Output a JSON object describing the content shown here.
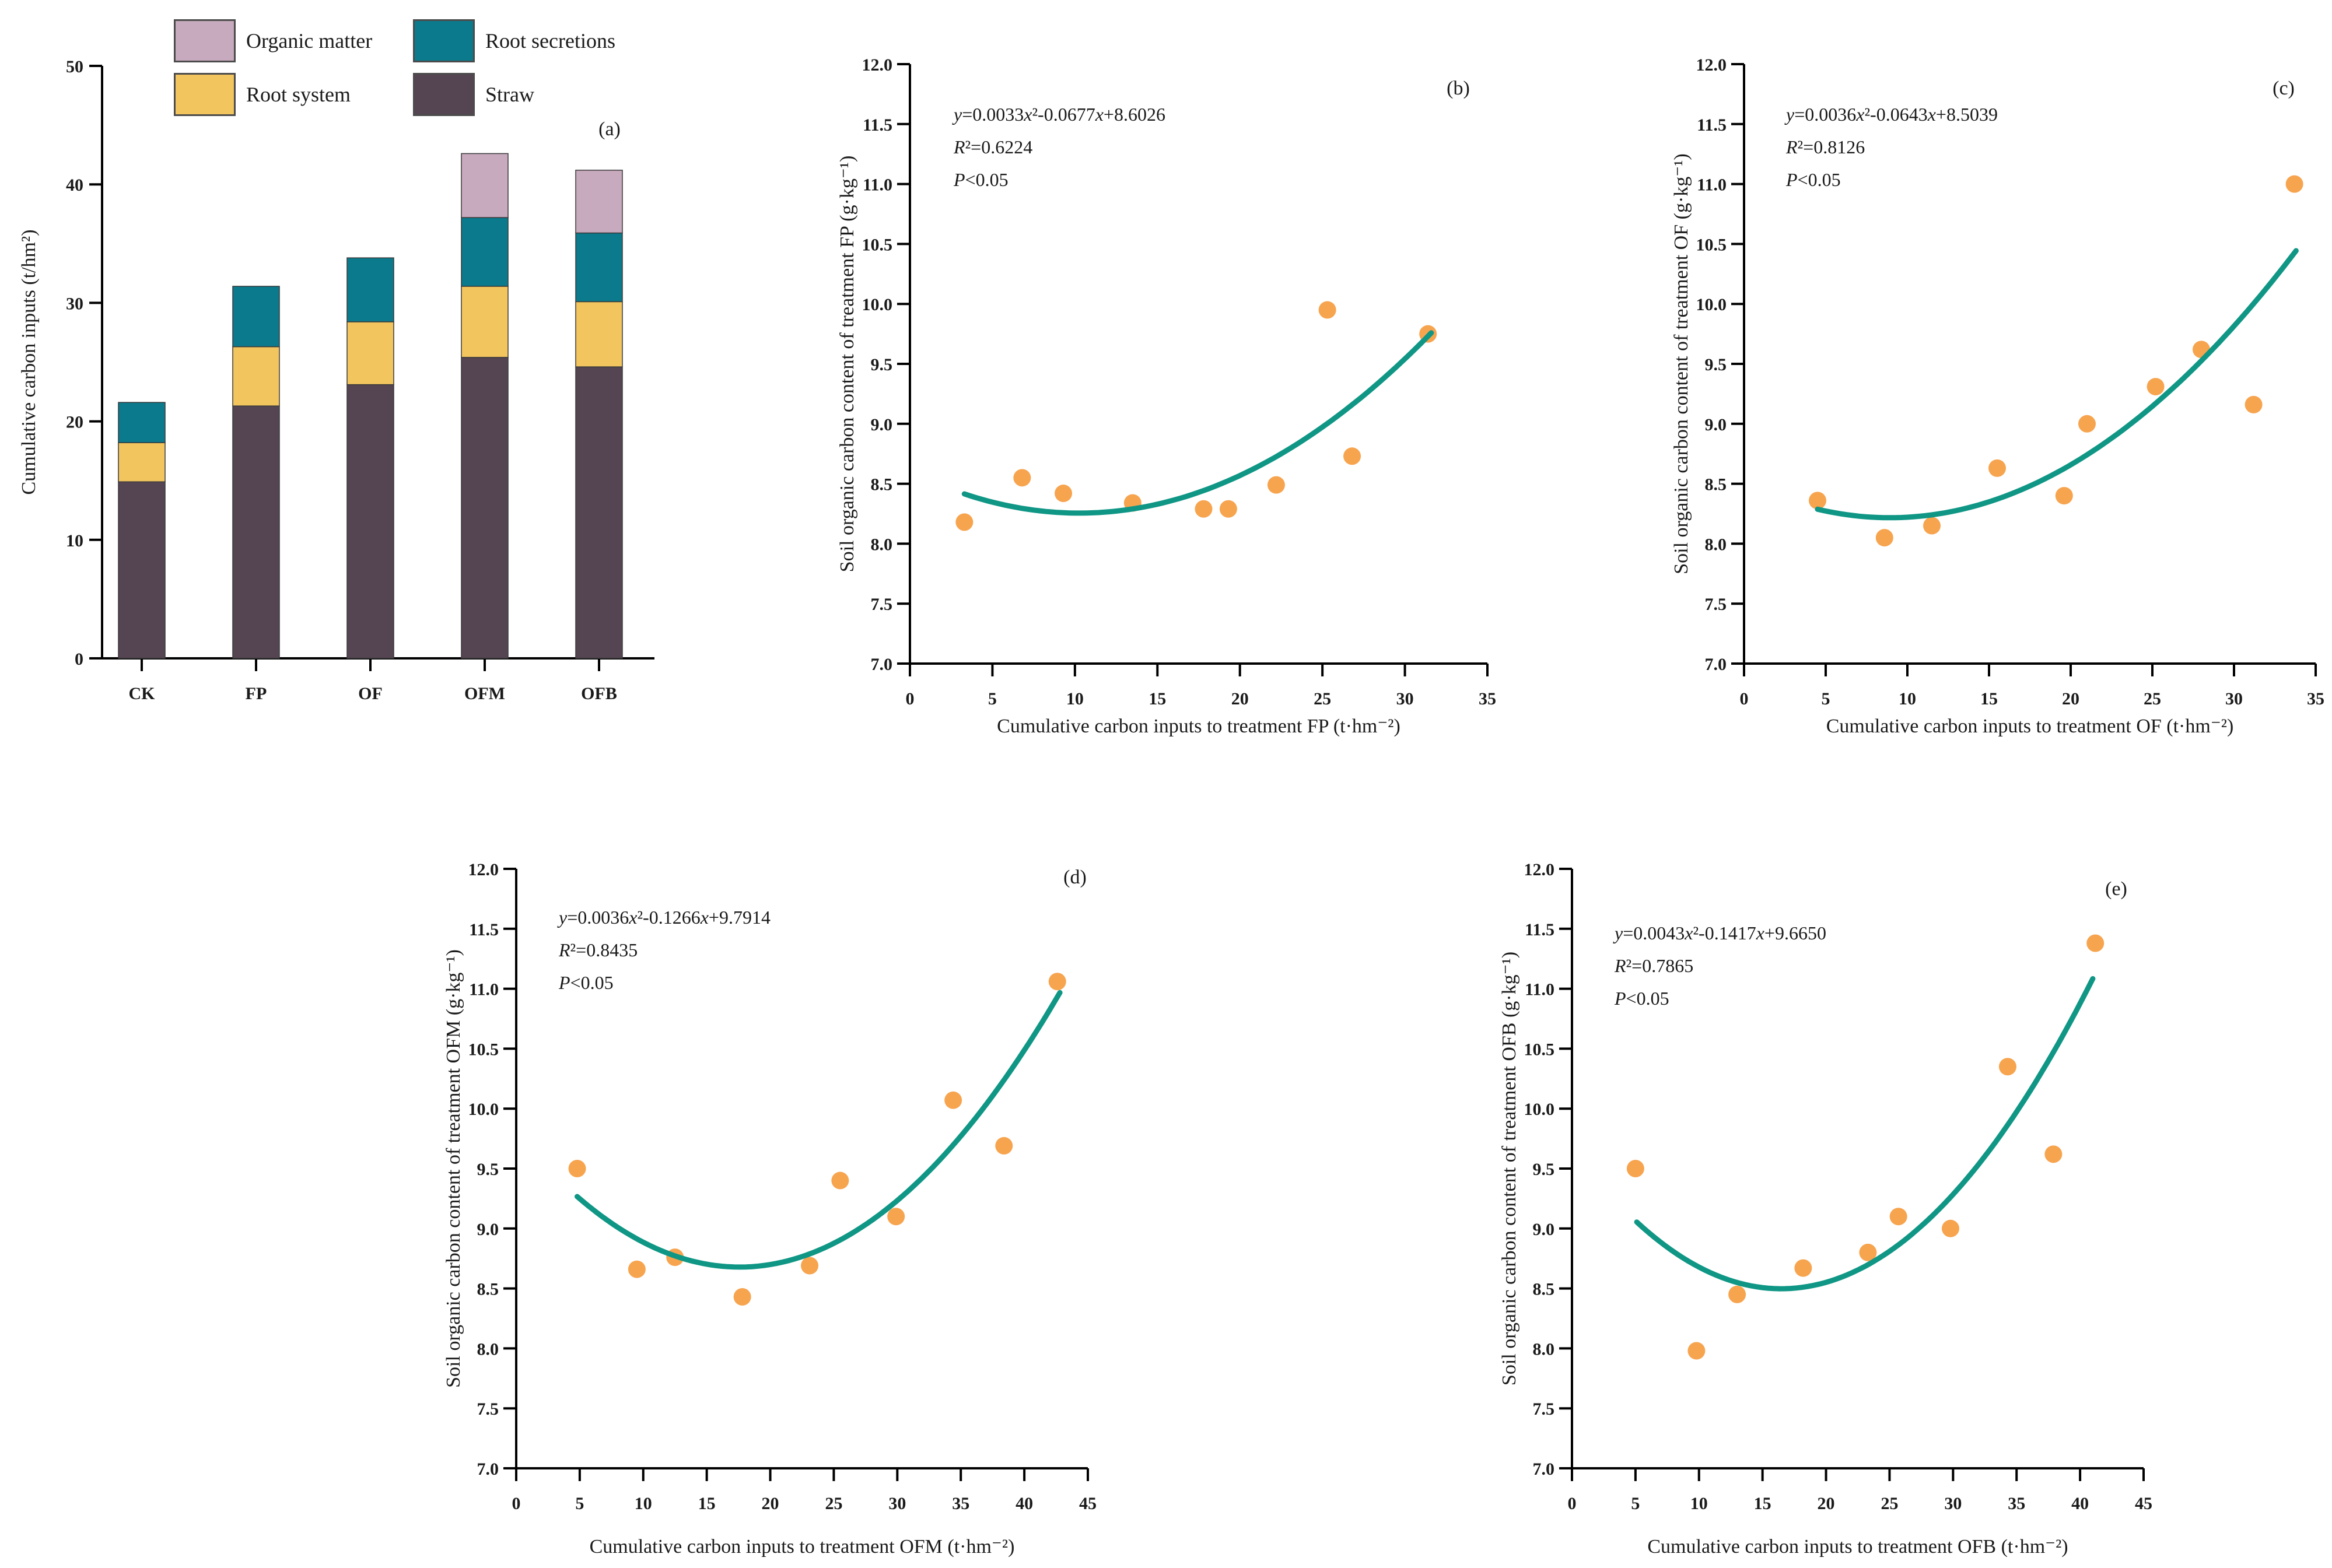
{
  "page": {
    "background": "#ffffff",
    "axis_color": "#000000",
    "text_color": "#1a1a1a"
  },
  "chart_data": [
    {
      "id": "a",
      "type": "bar",
      "panel_label": "(a)",
      "ylabel": "Cumulative carbon inputs (t/hm²)",
      "ylim": [
        0,
        50
      ],
      "yticks": [
        0,
        10,
        20,
        30,
        40,
        50
      ],
      "categories": [
        "CK",
        "FP",
        "OF",
        "OFM",
        "OFB"
      ],
      "series": [
        {
          "name": "Straw",
          "color": "#554452",
          "values": [
            14.9,
            21.3,
            23.1,
            25.4,
            24.6
          ]
        },
        {
          "name": "Root system",
          "color": "#F3C55F",
          "values": [
            3.3,
            5.0,
            5.3,
            6.0,
            5.5
          ]
        },
        {
          "name": "Root secretions",
          "color": "#0A7A8C",
          "values": [
            3.4,
            5.1,
            5.4,
            5.8,
            5.8
          ]
        },
        {
          "name": "Organic matter",
          "color": "#C7AABD",
          "values": [
            0,
            0,
            0,
            5.4,
            5.3
          ]
        }
      ],
      "totals": [
        21.6,
        31.4,
        33.8,
        42.6,
        41.2
      ],
      "legend": [
        {
          "label": "Organic matter",
          "color": "#C7AABD"
        },
        {
          "label": "Root secretions",
          "color": "#0A7A8C"
        },
        {
          "label": "Root system",
          "color": "#F3C55F"
        },
        {
          "label": "Straw",
          "color": "#554452"
        }
      ]
    },
    {
      "id": "b",
      "type": "scatter",
      "panel_label": "(b)",
      "xlabel": "Cumulative carbon inputs to treatment FP (t·hm⁻²)",
      "ylabel": "Soil organic carbon content of treatment FP (g·kg⁻¹)",
      "xlim": [
        0,
        35
      ],
      "xtick_step": 5,
      "ylim": [
        7,
        12
      ],
      "ytick_step": 0.5,
      "equation": [
        "y=0.0033x²-0.0677x+8.6026",
        "R²=0.6224",
        "P<0.05"
      ],
      "fit": {
        "a": 0.0033,
        "b": -0.0677,
        "c": 8.6026,
        "x_range": [
          3.3,
          31.6
        ]
      },
      "points": [
        [
          3.3,
          8.18
        ],
        [
          6.8,
          8.55
        ],
        [
          9.3,
          8.42
        ],
        [
          13.5,
          8.34
        ],
        [
          17.8,
          8.29
        ],
        [
          19.3,
          8.29
        ],
        [
          22.2,
          8.49
        ],
        [
          25.3,
          9.95
        ],
        [
          26.8,
          8.73
        ],
        [
          31.4,
          9.75
        ]
      ],
      "point_color": "#F7A44F",
      "curve_color": "#0F9685"
    },
    {
      "id": "c",
      "type": "scatter",
      "panel_label": "(c)",
      "xlabel": "Cumulative carbon inputs to treatment OF (t·hm⁻²)",
      "ylabel": "Soil organic carbon content of treatment OF (g·kg⁻¹)",
      "xlim": [
        0,
        35
      ],
      "xtick_step": 5,
      "ylim": [
        7,
        12
      ],
      "ytick_step": 0.5,
      "equation": [
        "y=0.0036x²-0.0643x+8.5039",
        "R²=0.8126",
        "P<0.05"
      ],
      "fit": {
        "a": 0.0036,
        "b": -0.0643,
        "c": 8.5039,
        "x_range": [
          4.5,
          33.8
        ]
      },
      "points": [
        [
          4.5,
          8.36
        ],
        [
          8.6,
          8.05
        ],
        [
          11.5,
          8.15
        ],
        [
          15.5,
          8.63
        ],
        [
          19.6,
          8.4
        ],
        [
          21.0,
          9.0
        ],
        [
          25.2,
          9.31
        ],
        [
          28.0,
          9.62
        ],
        [
          31.2,
          9.16
        ],
        [
          33.7,
          11.0
        ]
      ],
      "point_color": "#F7A44F",
      "curve_color": "#0F9685"
    },
    {
      "id": "d",
      "type": "scatter",
      "panel_label": "(d)",
      "xlabel": "Cumulative carbon inputs to treatment OFM (t·hm⁻²)",
      "ylabel": "Soil organic carbon content of treatment OFM (g·kg⁻¹)",
      "xlim": [
        0,
        45
      ],
      "xtick_step": 5,
      "ylim": [
        7,
        12
      ],
      "ytick_step": 0.5,
      "equation": [
        "y=0.0036x²-0.1266x+9.7914",
        "R²=0.8435",
        "P<0.05"
      ],
      "fit": {
        "a": 0.0036,
        "b": -0.1266,
        "c": 9.7914,
        "x_range": [
          4.8,
          42.8
        ]
      },
      "points": [
        [
          4.8,
          9.5
        ],
        [
          9.5,
          8.66
        ],
        [
          12.5,
          8.76
        ],
        [
          17.8,
          8.43
        ],
        [
          23.1,
          8.69
        ],
        [
          25.5,
          9.4
        ],
        [
          29.9,
          9.1
        ],
        [
          34.4,
          10.07
        ],
        [
          38.4,
          9.69
        ],
        [
          42.6,
          11.06
        ]
      ],
      "point_color": "#F7A44F",
      "curve_color": "#0F9685"
    },
    {
      "id": "e",
      "type": "scatter",
      "panel_label": "(e)",
      "xlabel": "Cumulative carbon inputs to treatment OFB (t·hm⁻²)",
      "ylabel": "Soil organic carbon content of treatment OFB (g·kg⁻¹)",
      "xlim": [
        0,
        45
      ],
      "xtick_step": 5,
      "ylim": [
        7,
        12
      ],
      "ytick_step": 0.5,
      "equation": [
        "y=0.0043x²-0.1417x+9.6650",
        "R²=0.7865",
        "P<0.05"
      ],
      "fit": {
        "a": 0.0043,
        "b": -0.1417,
        "c": 9.665,
        "x_range": [
          5.1,
          41.0
        ]
      },
      "points": [
        [
          5.0,
          9.5
        ],
        [
          9.8,
          7.98
        ],
        [
          13.0,
          8.45
        ],
        [
          18.2,
          8.67
        ],
        [
          23.3,
          8.8
        ],
        [
          25.7,
          9.1
        ],
        [
          29.8,
          9.0
        ],
        [
          34.3,
          10.35
        ],
        [
          37.9,
          9.62
        ],
        [
          41.2,
          11.38
        ]
      ],
      "point_color": "#F7A44F",
      "curve_color": "#0F9685"
    }
  ]
}
